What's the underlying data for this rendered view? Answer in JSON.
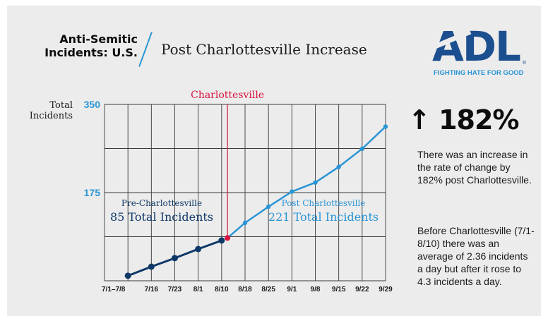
{
  "header": {
    "title_line1": "Anti-Semitic",
    "title_line2": "Incidents: U.S.",
    "subtitle": "Post Charlottesville Increase"
  },
  "logo": {
    "text": "ADL",
    "tagline": "FIGHTING HATE FOR GOOD",
    "color": "#1c4f8f"
  },
  "stat": {
    "headline": "↑ 182%",
    "paragraph1": "There was an increase in the rate of change by 182% post Charlottesville.",
    "paragraph2": "Before Charlottesville (7/1-8/10) there was an average of 2.36 incidents a day but after it rose to 4.3 incidents a day."
  },
  "colors": {
    "pre": "#0f3868",
    "post": "#2a95d5",
    "event": "#d9143f",
    "grid": "#3a3a3a"
  },
  "chart_data": {
    "type": "line",
    "ylabel": "Total Incidents",
    "ylim": [
      0,
      350
    ],
    "yticks": [
      175,
      350
    ],
    "grid": true,
    "categories": [
      "7/1–7/8",
      "7/16",
      "7/23",
      "8/1",
      "8/10",
      "8/18",
      "8/25",
      "9/1",
      "9/8",
      "9/15",
      "9/22",
      "9/29"
    ],
    "annotation": {
      "label": "Charlottesville",
      "x_value": "8/11"
    },
    "series": [
      {
        "name": "Pre-Charlottesville",
        "total_label": "85 Total Incidents",
        "points": [
          {
            "x": "7/1–7/8",
            "y": 10
          },
          {
            "x": "7/16",
            "y": 28
          },
          {
            "x": "7/23",
            "y": 45
          },
          {
            "x": "8/1",
            "y": 63
          },
          {
            "x": "8/10",
            "y": 80
          }
        ]
      },
      {
        "name": "Post Charlottesville",
        "total_label": "221 Total Incidents",
        "points": [
          {
            "x": "8/11",
            "y": 85
          },
          {
            "x": "8/18",
            "y": 115
          },
          {
            "x": "8/25",
            "y": 147
          },
          {
            "x": "9/1",
            "y": 177
          },
          {
            "x": "9/8",
            "y": 195
          },
          {
            "x": "9/15",
            "y": 226
          },
          {
            "x": "9/22",
            "y": 262
          },
          {
            "x": "9/29",
            "y": 306
          }
        ]
      }
    ]
  }
}
